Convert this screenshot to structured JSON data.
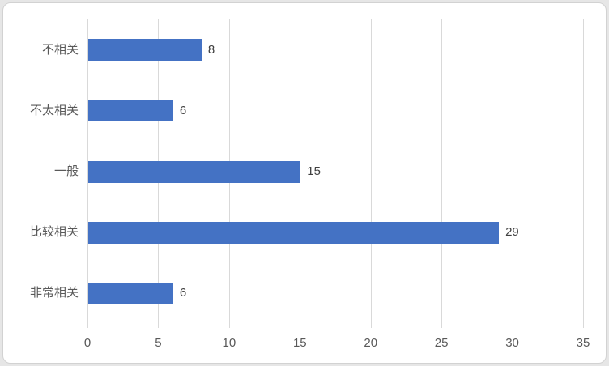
{
  "chart_data": {
    "type": "bar",
    "orientation": "horizontal",
    "categories": [
      "不相关",
      "不太相关",
      "一般",
      "比较相关",
      "非常相关"
    ],
    "values": [
      8,
      6,
      15,
      29,
      6
    ],
    "data_labels": [
      "8",
      "6",
      "15",
      "29",
      "6"
    ],
    "x_ticks": [
      "0",
      "5",
      "10",
      "15",
      "20",
      "25",
      "30",
      "35"
    ],
    "x_tick_values": [
      0,
      5,
      10,
      15,
      20,
      25,
      30,
      35
    ],
    "xlim": [
      0,
      35
    ],
    "grid": "vertical",
    "legend": "none",
    "colors": {
      "bar": "#4472C4",
      "gridline": "#D9D9D9",
      "tick_label": "#595959",
      "category_label": "#595959",
      "data_label": "#404040",
      "plot_background": "#FFFFFF",
      "chart_border": "#D2D2D2"
    }
  }
}
